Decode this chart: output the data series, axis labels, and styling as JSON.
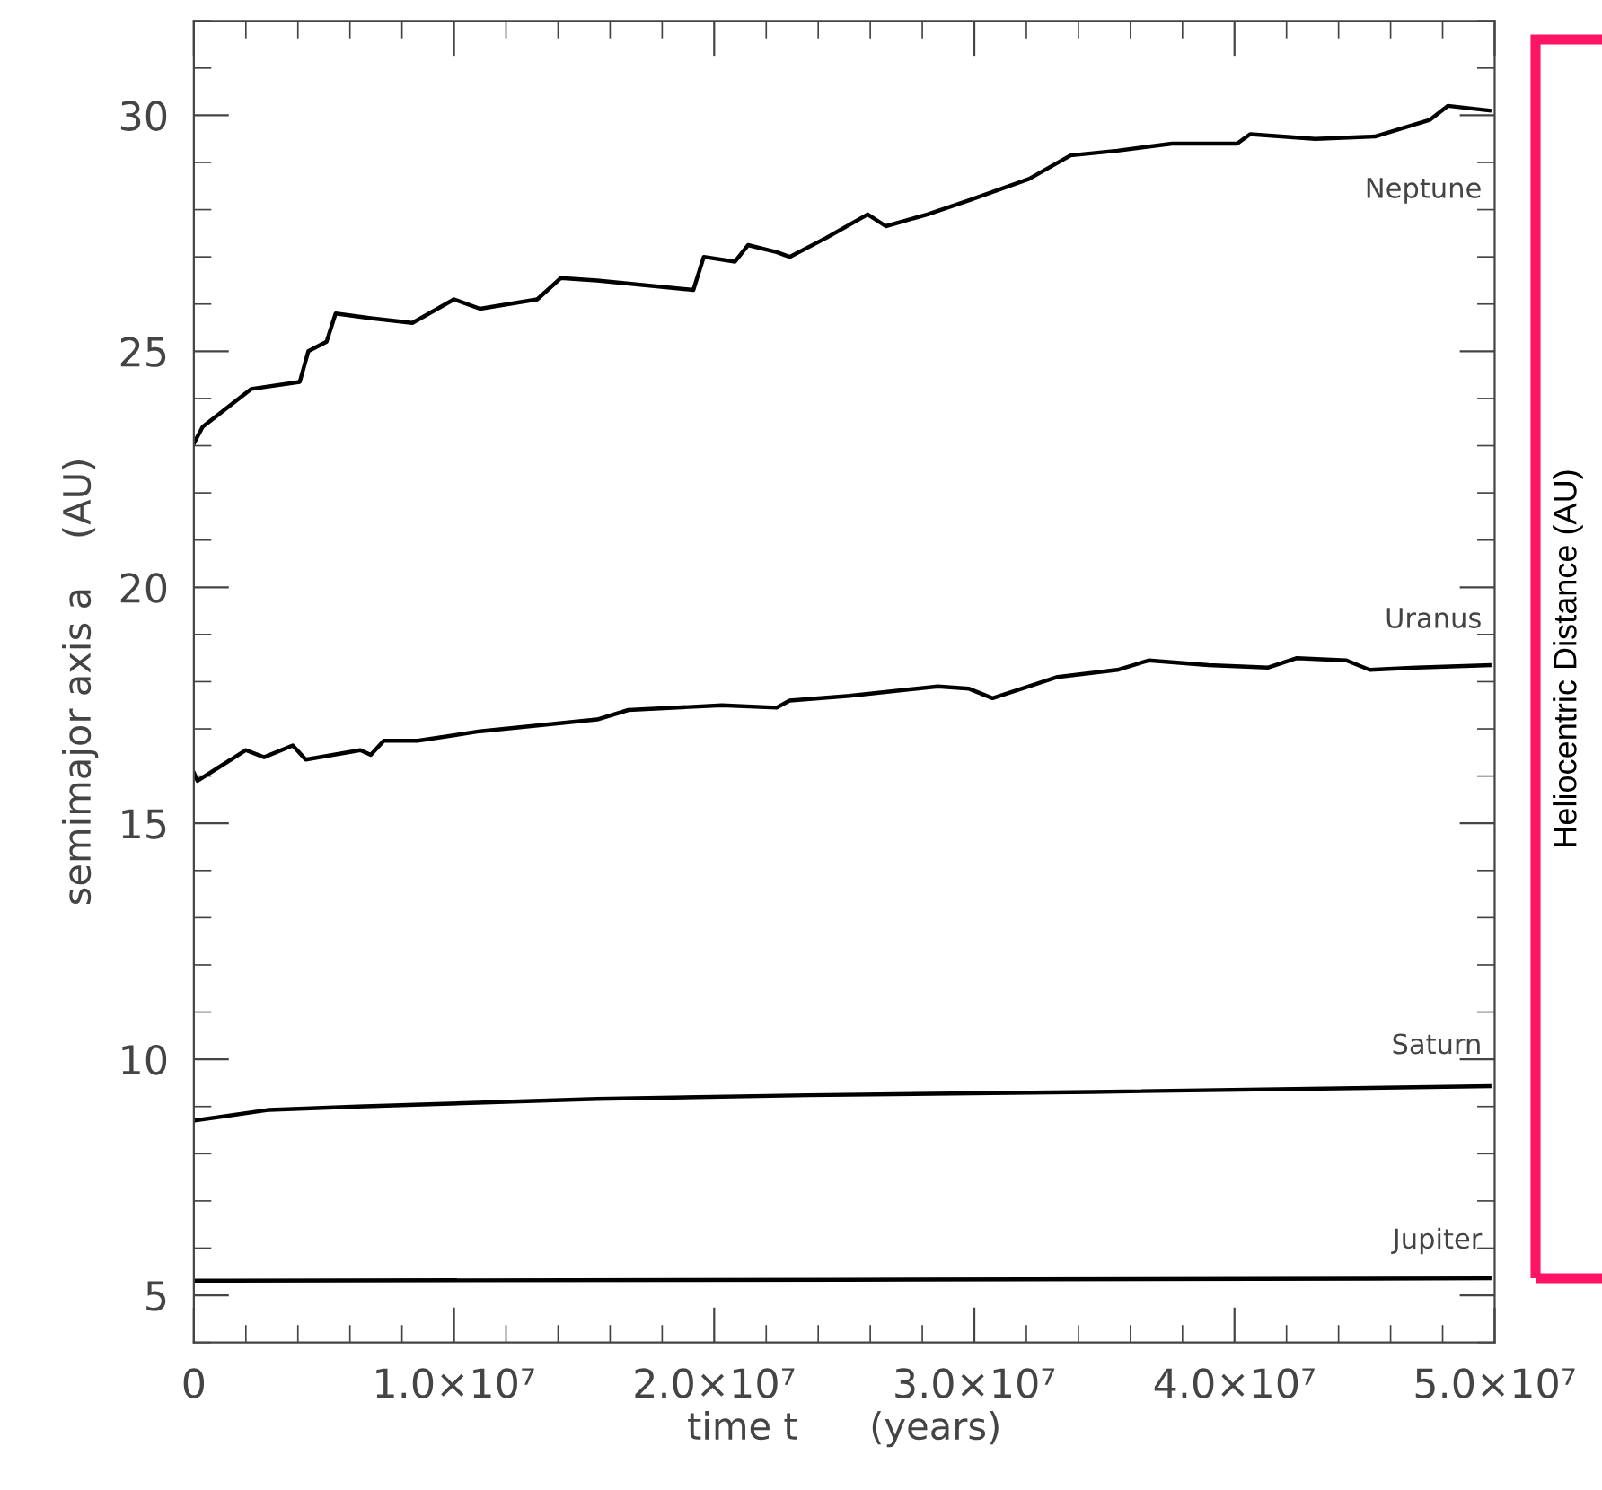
{
  "chart_data": {
    "type": "line",
    "xlabel": "time t      (years)",
    "ylabel": "semimajor axis a    (AU)",
    "annotations": [
      "Heliocentric Distance (AU)"
    ],
    "xlim": [
      0,
      50000000.0
    ],
    "ylim": [
      4,
      32
    ],
    "xticks": [
      {
        "value": 0,
        "label": "0"
      },
      {
        "value": 10000000.0,
        "label": "1.0×10⁷"
      },
      {
        "value": 20000000.0,
        "label": "2.0×10⁷"
      },
      {
        "value": 30000000.0,
        "label": "3.0×10⁷"
      },
      {
        "value": 40000000.0,
        "label": "4.0×10⁷"
      },
      {
        "value": 50000000.0,
        "label": "5.0×10⁷"
      },
      {
        "value": 2000000.0,
        "label": null
      },
      {
        "value": 4000000.0,
        "label": null
      },
      {
        "value": 6000000.0,
        "label": null
      },
      {
        "value": 8000000.0,
        "label": null
      },
      {
        "value": 12000000.0,
        "label": null
      },
      {
        "value": 14000000.0,
        "label": null
      },
      {
        "value": 16000000.0,
        "label": null
      },
      {
        "value": 18000000.0,
        "label": null
      },
      {
        "value": 22000000.0,
        "label": null
      },
      {
        "value": 24000000.0,
        "label": null
      },
      {
        "value": 26000000.0,
        "label": null
      },
      {
        "value": 28000000.0,
        "label": null
      },
      {
        "value": 32000000.0,
        "label": null
      },
      {
        "value": 34000000.0,
        "label": null
      },
      {
        "value": 36000000.0,
        "label": null
      },
      {
        "value": 38000000.0,
        "label": null
      },
      {
        "value": 42000000.0,
        "label": null
      },
      {
        "value": 44000000.0,
        "label": null
      },
      {
        "value": 46000000.0,
        "label": null
      },
      {
        "value": 48000000.0,
        "label": null
      }
    ],
    "yticks": [
      5,
      10,
      15,
      20,
      25,
      30,
      {
        "value": 4,
        "label": null
      },
      {
        "value": 6,
        "label": null
      },
      {
        "value": 7,
        "label": null
      },
      {
        "value": 8,
        "label": null
      },
      {
        "value": 9,
        "label": null
      },
      {
        "value": 11,
        "label": null
      },
      {
        "value": 12,
        "label": null
      },
      {
        "value": 13,
        "label": null
      },
      {
        "value": 14,
        "label": null
      },
      {
        "value": 16,
        "label": null
      },
      {
        "value": 17,
        "label": null
      },
      {
        "value": 18,
        "label": null
      },
      {
        "value": 19,
        "label": null
      },
      {
        "value": 21,
        "label": null
      },
      {
        "value": 22,
        "label": null
      },
      {
        "value": 23,
        "label": null
      },
      {
        "value": 24,
        "label": null
      },
      {
        "value": 26,
        "label": null
      },
      {
        "value": 27,
        "label": null
      },
      {
        "value": 28,
        "label": null
      },
      {
        "value": 29,
        "label": null
      },
      {
        "value": 31,
        "label": null
      },
      {
        "value": 32,
        "label": null
      }
    ],
    "grid": false,
    "legend": false,
    "marker": "none",
    "line_style": "solid",
    "series": [
      {
        "name": "Neptune",
        "color": "#000000",
        "x": [
          0,
          340000.0,
          2200000.0,
          4070000.0,
          4400000.0,
          5100000.0,
          5450000.0,
          6800000.0,
          8400000.0,
          10000000.0,
          11000000.0,
          13200000.0,
          14100000.0,
          15500000.0,
          19200000.0,
          19600000.0,
          20800000.0,
          21300000.0,
          22400000.0,
          22900000.0,
          24300000.0,
          25900000.0,
          26600000.0,
          28200000.0,
          29800000.0,
          32100000.0,
          33700000.0,
          35500000.0,
          37600000.0,
          40100000.0,
          40600000.0,
          43100000.0,
          45400000.0,
          47500000.0,
          48200000.0,
          49800000.0
        ],
        "values": [
          23.05,
          23.4,
          24.2,
          24.35,
          25.0,
          25.2,
          25.8,
          25.7,
          25.6,
          26.1,
          25.9,
          26.1,
          26.55,
          26.5,
          26.3,
          27.0,
          26.9,
          27.25,
          27.1,
          27.0,
          27.4,
          27.9,
          27.65,
          27.9,
          28.2,
          28.65,
          29.15,
          29.25,
          29.4,
          29.4,
          29.6,
          29.5,
          29.55,
          29.9,
          30.2,
          30.1
        ]
      },
      {
        "name": "Uranus",
        "color": "#000000",
        "x": [
          0,
          140000.0,
          2000000.0,
          2700000.0,
          3800000.0,
          4300000.0,
          6400000.0,
          6800000.0,
          7300000.0,
          8600000.0,
          11000000.0,
          15500000.0,
          16700000.0,
          20300000.0,
          22400000.0,
          22900000.0,
          25200000.0,
          28600000.0,
          29800000.0,
          30700000.0,
          33200000.0,
          35500000.0,
          36700000.0,
          39000000.0,
          41300000.0,
          42400000.0,
          44300000.0,
          45200000.0,
          47000000.0,
          49800000.0
        ],
        "values": [
          16.07,
          15.9,
          16.55,
          16.4,
          16.65,
          16.35,
          16.55,
          16.45,
          16.75,
          16.75,
          16.95,
          17.2,
          17.4,
          17.5,
          17.45,
          17.6,
          17.7,
          17.9,
          17.85,
          17.65,
          18.1,
          18.25,
          18.45,
          18.35,
          18.3,
          18.5,
          18.45,
          18.25,
          18.3,
          18.35
        ]
      },
      {
        "name": "Saturn",
        "color": "#000000",
        "x": [
          0,
          2900000.0,
          6300000.0,
          10900000.0,
          15500000.0,
          23600000.0,
          34500000.0,
          49800000.0
        ],
        "values": [
          8.7,
          8.93,
          9.0,
          9.08,
          9.16,
          9.24,
          9.31,
          9.43
        ]
      },
      {
        "name": "Jupiter",
        "color": "#000000",
        "x": [
          0,
          25000000.0,
          49800000.0
        ],
        "values": [
          5.31,
          5.33,
          5.36
        ]
      }
    ]
  }
}
